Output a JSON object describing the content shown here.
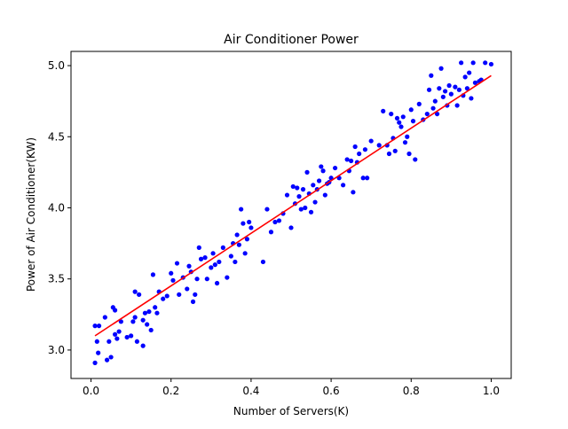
{
  "chart_data": {
    "type": "scatter",
    "title": "Air Conditioner Power",
    "xlabel": "Number of Servers(K)",
    "ylabel": "Power of Air Conditioner(KW)",
    "xlim": [
      -0.05,
      1.05
    ],
    "ylim": [
      2.8,
      5.1
    ],
    "xticks": [
      0.0,
      0.2,
      0.4,
      0.6,
      0.8,
      1.0
    ],
    "xtick_labels": [
      "0.0",
      "0.2",
      "0.4",
      "0.6",
      "0.8",
      "1.0"
    ],
    "yticks": [
      3.0,
      3.5,
      4.0,
      4.5,
      5.0
    ],
    "ytick_labels": [
      "3.0",
      "3.5",
      "4.0",
      "4.5",
      "5.0"
    ],
    "grid": false,
    "series": [
      {
        "kind": "scatter",
        "color": "#0000ff",
        "points": [
          [
            0.01,
            2.91
          ],
          [
            0.01,
            3.17
          ],
          [
            0.015,
            3.06
          ],
          [
            0.018,
            2.98
          ],
          [
            0.02,
            3.17
          ],
          [
            0.035,
            3.23
          ],
          [
            0.04,
            2.93
          ],
          [
            0.045,
            3.06
          ],
          [
            0.05,
            2.95
          ],
          [
            0.055,
            3.3
          ],
          [
            0.06,
            3.11
          ],
          [
            0.06,
            3.28
          ],
          [
            0.065,
            3.08
          ],
          [
            0.07,
            3.13
          ],
          [
            0.075,
            3.2
          ],
          [
            0.09,
            3.09
          ],
          [
            0.1,
            3.1
          ],
          [
            0.105,
            3.2
          ],
          [
            0.11,
            3.23
          ],
          [
            0.11,
            3.41
          ],
          [
            0.115,
            3.06
          ],
          [
            0.12,
            3.39
          ],
          [
            0.13,
            3.03
          ],
          [
            0.13,
            3.21
          ],
          [
            0.135,
            3.26
          ],
          [
            0.14,
            3.18
          ],
          [
            0.145,
            3.27
          ],
          [
            0.15,
            3.14
          ],
          [
            0.155,
            3.53
          ],
          [
            0.16,
            3.3
          ],
          [
            0.165,
            3.26
          ],
          [
            0.17,
            3.41
          ],
          [
            0.18,
            3.36
          ],
          [
            0.19,
            3.38
          ],
          [
            0.2,
            3.54
          ],
          [
            0.205,
            3.49
          ],
          [
            0.215,
            3.61
          ],
          [
            0.22,
            3.39
          ],
          [
            0.23,
            3.51
          ],
          [
            0.24,
            3.43
          ],
          [
            0.245,
            3.59
          ],
          [
            0.25,
            3.55
          ],
          [
            0.255,
            3.34
          ],
          [
            0.26,
            3.39
          ],
          [
            0.265,
            3.5
          ],
          [
            0.27,
            3.72
          ],
          [
            0.275,
            3.64
          ],
          [
            0.285,
            3.65
          ],
          [
            0.29,
            3.5
          ],
          [
            0.3,
            3.58
          ],
          [
            0.305,
            3.68
          ],
          [
            0.31,
            3.6
          ],
          [
            0.315,
            3.47
          ],
          [
            0.32,
            3.62
          ],
          [
            0.33,
            3.72
          ],
          [
            0.34,
            3.51
          ],
          [
            0.35,
            3.66
          ],
          [
            0.355,
            3.75
          ],
          [
            0.36,
            3.62
          ],
          [
            0.365,
            3.81
          ],
          [
            0.37,
            3.74
          ],
          [
            0.375,
            3.99
          ],
          [
            0.38,
            3.89
          ],
          [
            0.385,
            3.68
          ],
          [
            0.39,
            3.78
          ],
          [
            0.395,
            3.9
          ],
          [
            0.4,
            3.86
          ],
          [
            0.43,
            3.62
          ],
          [
            0.44,
            3.99
          ],
          [
            0.45,
            3.83
          ],
          [
            0.46,
            3.9
          ],
          [
            0.47,
            3.91
          ],
          [
            0.48,
            3.96
          ],
          [
            0.49,
            4.09
          ],
          [
            0.5,
            3.86
          ],
          [
            0.505,
            4.15
          ],
          [
            0.51,
            4.03
          ],
          [
            0.515,
            4.14
          ],
          [
            0.52,
            4.08
          ],
          [
            0.525,
            3.99
          ],
          [
            0.53,
            4.13
          ],
          [
            0.535,
            4.0
          ],
          [
            0.54,
            4.25
          ],
          [
            0.545,
            4.1
          ],
          [
            0.55,
            3.97
          ],
          [
            0.555,
            4.16
          ],
          [
            0.56,
            4.04
          ],
          [
            0.565,
            4.13
          ],
          [
            0.57,
            4.19
          ],
          [
            0.575,
            4.29
          ],
          [
            0.58,
            4.26
          ],
          [
            0.585,
            4.09
          ],
          [
            0.59,
            4.17
          ],
          [
            0.595,
            4.18
          ],
          [
            0.6,
            4.21
          ],
          [
            0.61,
            4.28
          ],
          [
            0.62,
            4.21
          ],
          [
            0.63,
            4.16
          ],
          [
            0.64,
            4.34
          ],
          [
            0.645,
            4.26
          ],
          [
            0.65,
            4.33
          ],
          [
            0.655,
            4.11
          ],
          [
            0.66,
            4.43
          ],
          [
            0.665,
            4.32
          ],
          [
            0.67,
            4.38
          ],
          [
            0.68,
            4.21
          ],
          [
            0.685,
            4.41
          ],
          [
            0.69,
            4.21
          ],
          [
            0.7,
            4.47
          ],
          [
            0.72,
            4.44
          ],
          [
            0.73,
            4.68
          ],
          [
            0.74,
            4.44
          ],
          [
            0.745,
            4.38
          ],
          [
            0.75,
            4.66
          ],
          [
            0.755,
            4.49
          ],
          [
            0.76,
            4.4
          ],
          [
            0.765,
            4.63
          ],
          [
            0.77,
            4.6
          ],
          [
            0.775,
            4.57
          ],
          [
            0.78,
            4.64
          ],
          [
            0.785,
            4.46
          ],
          [
            0.79,
            4.5
          ],
          [
            0.795,
            4.38
          ],
          [
            0.8,
            4.69
          ],
          [
            0.805,
            4.61
          ],
          [
            0.81,
            4.34
          ],
          [
            0.82,
            4.73
          ],
          [
            0.83,
            4.62
          ],
          [
            0.84,
            4.66
          ],
          [
            0.845,
            4.83
          ],
          [
            0.85,
            4.93
          ],
          [
            0.855,
            4.7
          ],
          [
            0.86,
            4.75
          ],
          [
            0.865,
            4.66
          ],
          [
            0.87,
            4.84
          ],
          [
            0.875,
            4.98
          ],
          [
            0.88,
            4.78
          ],
          [
            0.885,
            4.82
          ],
          [
            0.89,
            4.72
          ],
          [
            0.895,
            4.86
          ],
          [
            0.9,
            4.8
          ],
          [
            0.91,
            4.85
          ],
          [
            0.915,
            4.72
          ],
          [
            0.92,
            4.83
          ],
          [
            0.925,
            5.02
          ],
          [
            0.93,
            4.79
          ],
          [
            0.935,
            4.92
          ],
          [
            0.94,
            4.84
          ],
          [
            0.945,
            4.95
          ],
          [
            0.95,
            4.77
          ],
          [
            0.955,
            5.02
          ],
          [
            0.96,
            4.88
          ],
          [
            0.97,
            4.89
          ],
          [
            0.975,
            4.9
          ],
          [
            0.985,
            5.02
          ],
          [
            1.0,
            5.01
          ]
        ]
      },
      {
        "kind": "line",
        "color": "#ff0000",
        "points": [
          [
            0.01,
            3.1
          ],
          [
            1.0,
            4.93
          ]
        ]
      }
    ]
  }
}
